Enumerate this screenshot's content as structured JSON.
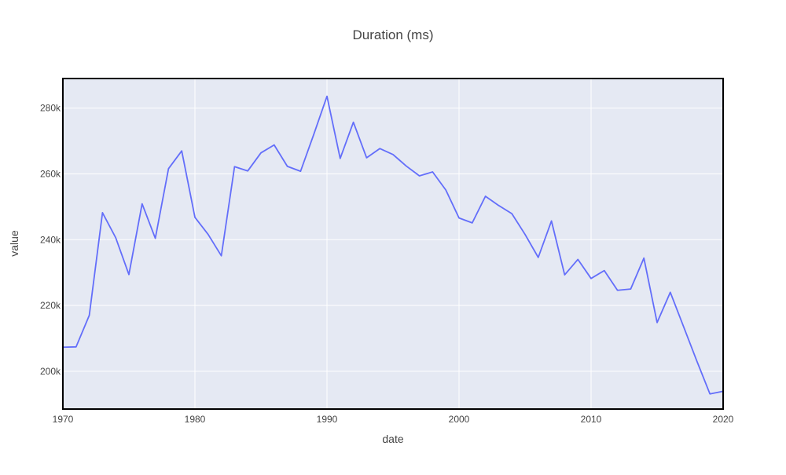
{
  "chart_data": {
    "type": "line",
    "title": "Duration (ms)",
    "xlabel": "date",
    "ylabel": "value",
    "xlim": [
      1970,
      2020
    ],
    "ylim": [
      188500,
      289000
    ],
    "x_ticks": [
      1970,
      1980,
      1990,
      2000,
      2010,
      2020
    ],
    "x_tick_labels": [
      "1970",
      "1980",
      "1990",
      "2000",
      "2010",
      "2020"
    ],
    "y_ticks": [
      200000,
      220000,
      240000,
      260000,
      280000
    ],
    "y_tick_labels": [
      "200k",
      "220k",
      "240k",
      "260k",
      "280k"
    ],
    "grid": true,
    "series": [
      {
        "color": "#636efa",
        "x": [
          1970,
          1971,
          1972,
          1973,
          1974,
          1975,
          1976,
          1977,
          1978,
          1979,
          1980,
          1981,
          1982,
          1983,
          1984,
          1985,
          1986,
          1987,
          1988,
          1989,
          1990,
          1991,
          1992,
          1993,
          1994,
          1995,
          1996,
          1997,
          1998,
          1999,
          2000,
          2001,
          2002,
          2003,
          2004,
          2005,
          2006,
          2007,
          2008,
          2009,
          2010,
          2011,
          2012,
          2013,
          2014,
          2015,
          2016,
          2017,
          2018,
          2019,
          2020
        ],
        "y": [
          207300,
          207400,
          217000,
          248200,
          240600,
          229400,
          250900,
          240400,
          261600,
          267000,
          246800,
          241600,
          235100,
          262200,
          260900,
          266400,
          268800,
          262300,
          260800,
          272000,
          283600,
          264700,
          275700,
          264900,
          267700,
          265900,
          262400,
          259400,
          260600,
          255100,
          246600,
          245100,
          253200,
          250400,
          247900,
          241600,
          234600,
          245700,
          229300,
          234000,
          228200,
          230600,
          224600,
          225000,
          234400,
          214800,
          224000,
          213600,
          203200,
          193100,
          193900
        ]
      }
    ]
  },
  "colors": {
    "plot_background": "#e5e9f3",
    "grid": "#ffffff",
    "frame": "#000000"
  }
}
